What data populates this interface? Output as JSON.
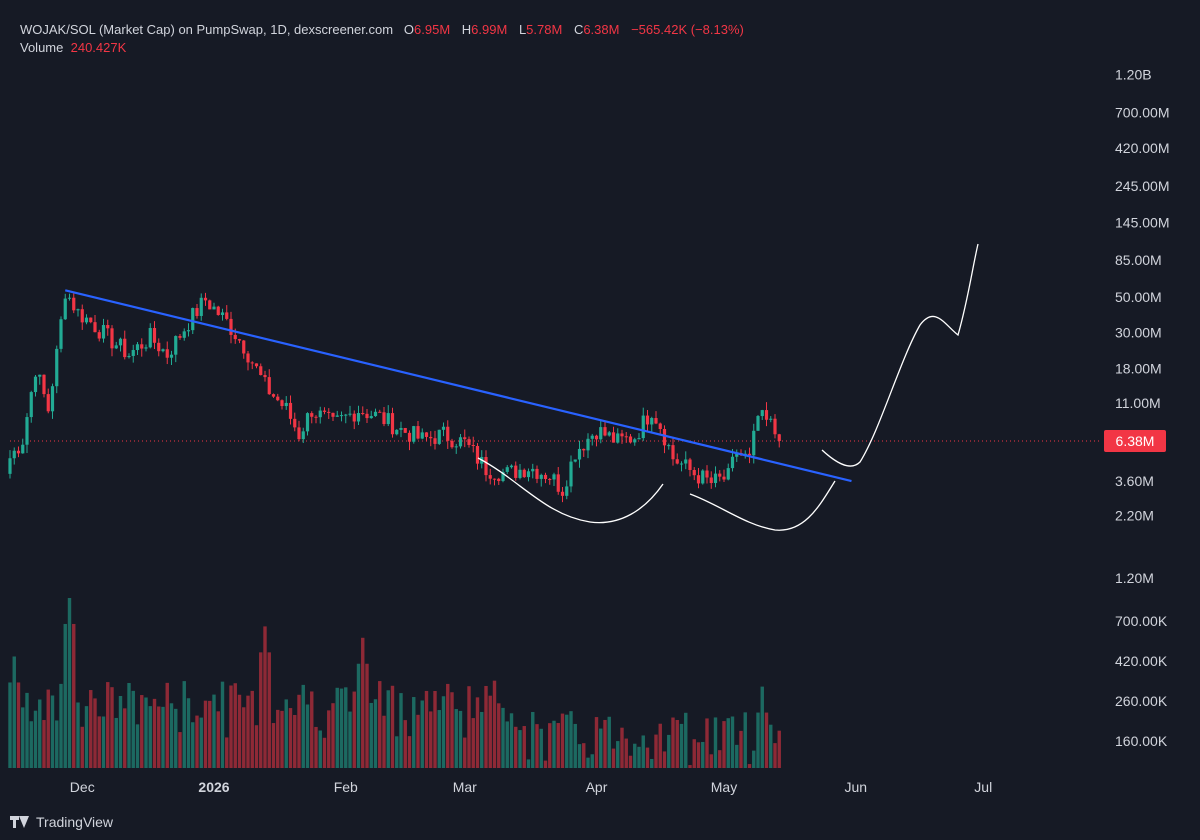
{
  "legend": {
    "pair_line": "WOJAK/SOL (Market Cap) on PumpSwap, 1D, dexscreener.com",
    "open_label": "O",
    "open": "6.95M",
    "high_label": "H",
    "high": "6.99M",
    "low_label": "L",
    "low": "5.78M",
    "close_label": "C",
    "close": "6.38M",
    "change": "−565.42K (−8.13%)",
    "volume_label": "Volume",
    "volume": "240.427K"
  },
  "price_badge": "6.38M",
  "brand": {
    "name": "TradingView",
    "logo_icon": "tradingview-logo-icon"
  },
  "colors": {
    "up": "#22ab94",
    "down": "#f23645",
    "trendline": "#2962ff",
    "annotation": "#ffffff",
    "background": "#161a25"
  },
  "chart_data": {
    "type": "candlestick",
    "title": "",
    "y_scale": "log",
    "y_ticks": [
      "1.20B",
      "700.00M",
      "420.00M",
      "245.00M",
      "145.00M",
      "85.00M",
      "50.00M",
      "30.00M",
      "18.00M",
      "11.00M",
      "6.38M",
      "3.60M",
      "2.20M",
      "1.20M",
      "700.00K",
      "420.00K",
      "260.00K",
      "160.00K"
    ],
    "x_ticks": [
      "Dec",
      "2026",
      "Feb",
      "Mar",
      "Apr",
      "May",
      "Jun",
      "Jul"
    ],
    "last_close": 6.38,
    "ohlc_anchor_closes_M": [
      [
        "2025-11-14",
        5.0
      ],
      [
        "2025-11-17",
        6.5
      ],
      [
        "2025-11-20",
        18.0
      ],
      [
        "2025-11-23",
        10.0
      ],
      [
        "2025-11-25",
        22.0
      ],
      [
        "2025-11-27",
        55.0
      ],
      [
        "2025-11-30",
        40.0
      ],
      [
        "2025-12-03",
        35.0
      ],
      [
        "2025-12-07",
        28.0
      ],
      [
        "2025-12-12",
        22.0
      ],
      [
        "2025-12-17",
        28.0
      ],
      [
        "2025-12-21",
        22.0
      ],
      [
        "2025-12-26",
        35.0
      ],
      [
        "2025-12-30",
        48.0
      ],
      [
        "2026-01-04",
        35.0
      ],
      [
        "2026-01-08",
        25.0
      ],
      [
        "2026-01-13",
        14.0
      ],
      [
        "2026-01-18",
        10.0
      ],
      [
        "2026-01-21",
        7.0
      ],
      [
        "2026-01-24",
        10.0
      ],
      [
        "2026-01-29",
        8.0
      ],
      [
        "2026-02-04",
        10.0
      ],
      [
        "2026-02-09",
        9.0
      ],
      [
        "2026-02-14",
        7.5
      ],
      [
        "2026-02-19",
        6.5
      ],
      [
        "2026-02-24",
        7.0
      ],
      [
        "2026-03-01",
        6.2
      ],
      [
        "2026-03-06",
        4.3
      ],
      [
        "2026-03-11",
        4.0
      ],
      [
        "2026-03-16",
        4.4
      ],
      [
        "2026-03-21",
        3.9
      ],
      [
        "2026-03-24",
        3.2
      ],
      [
        "2026-03-27",
        5.5
      ],
      [
        "2026-04-01",
        7.5
      ],
      [
        "2026-04-06",
        6.3
      ],
      [
        "2026-04-10",
        6.8
      ],
      [
        "2026-04-14",
        10.0
      ],
      [
        "2026-04-16",
        8.0
      ],
      [
        "2026-04-19",
        5.0
      ],
      [
        "2026-04-24",
        4.0
      ],
      [
        "2026-04-28",
        3.5
      ],
      [
        "2026-05-02",
        3.8
      ],
      [
        "2026-05-04",
        5.5
      ],
      [
        "2026-05-07",
        4.8
      ],
      [
        "2026-05-09",
        9.0
      ],
      [
        "2026-05-12",
        8.0
      ],
      [
        "2026-05-14",
        6.38
      ]
    ],
    "volume_peaks_K": [
      [
        "2025-11-15",
        260
      ],
      [
        "2025-11-28",
        1000
      ],
      [
        "2026-01-13",
        520
      ],
      [
        "2026-02-05",
        400
      ],
      [
        "2026-05-10",
        260
      ]
    ],
    "annotations": [
      {
        "type": "trendline",
        "from": [
          "2025-11-27",
          55.0
        ],
        "to": [
          "2026-05-31",
          3.6
        ]
      },
      {
        "type": "curve",
        "label": "cup-1"
      },
      {
        "type": "curve",
        "label": "cup-2"
      },
      {
        "type": "curve",
        "label": "projection"
      }
    ]
  }
}
